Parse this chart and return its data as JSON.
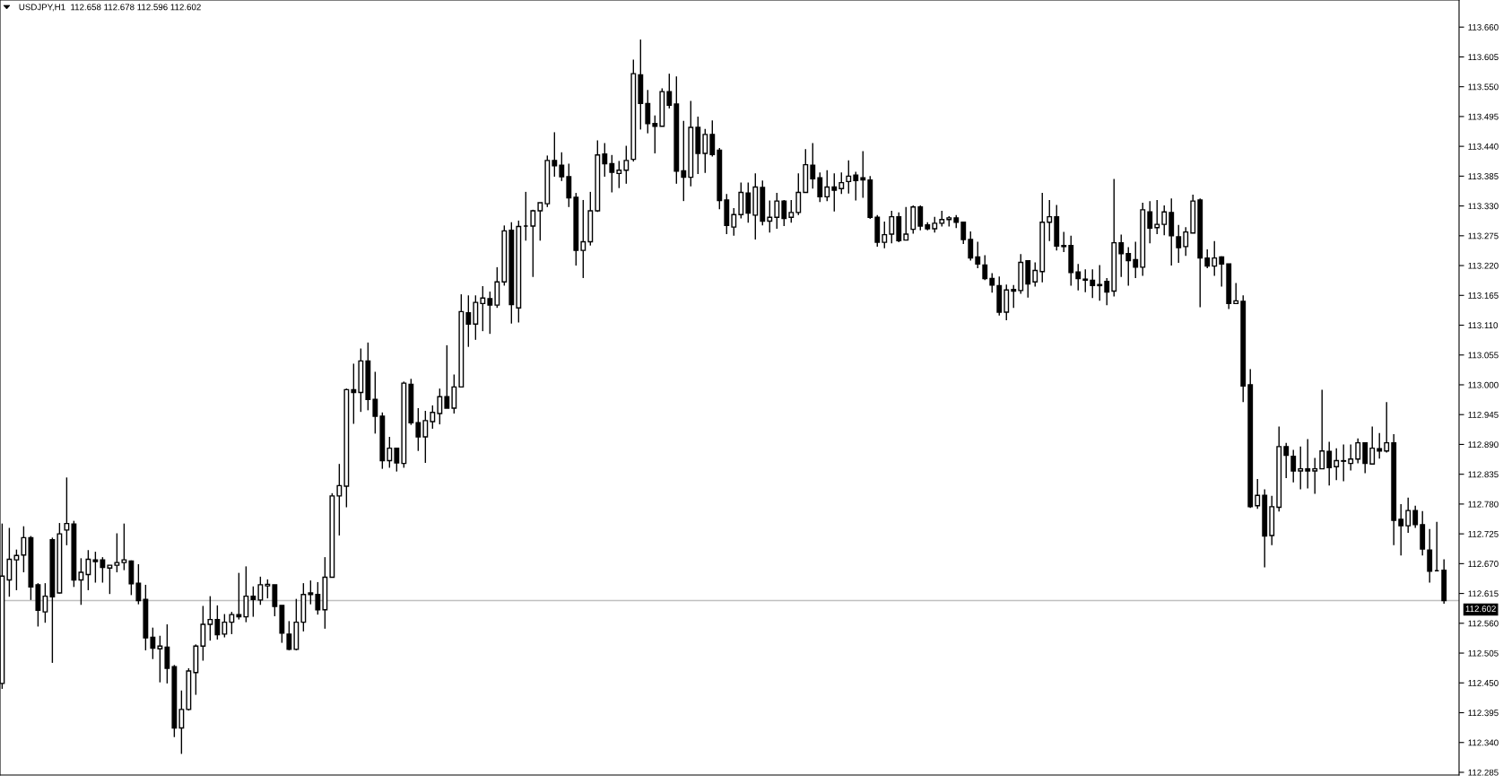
{
  "chart_data": {
    "type": "candlestick",
    "title": "USDJPY,H1  112.658 112.678 112.596 112.602",
    "categories": [
      null,
      null,
      null,
      null,
      null,
      null,
      null,
      null,
      null,
      null,
      null,
      null,
      null,
      null,
      null,
      null,
      null,
      null,
      null,
      null,
      null,
      null,
      null,
      null,
      null,
      null,
      null,
      null,
      null,
      null,
      null,
      null,
      null,
      null,
      null,
      null,
      null,
      null,
      null,
      null,
      null,
      null,
      null,
      null,
      null,
      null,
      null,
      null,
      null,
      null,
      null,
      null,
      null,
      null,
      null,
      null,
      null,
      null,
      null,
      null,
      null,
      null,
      null,
      null,
      null,
      null,
      null,
      null,
      null,
      null,
      null,
      null,
      null,
      null,
      null,
      null,
      null,
      null,
      null,
      null,
      null,
      null,
      null,
      null,
      null,
      null,
      null,
      null,
      null,
      null,
      null,
      null,
      null,
      null,
      null,
      null,
      null,
      null,
      null,
      null,
      null,
      null,
      null,
      null,
      null,
      null,
      null,
      null,
      null,
      null,
      null,
      null,
      null,
      null,
      null,
      null,
      null,
      null,
      null,
      null,
      null,
      null,
      null,
      null,
      null,
      null,
      null,
      null,
      null,
      null,
      null,
      null,
      null,
      null,
      null,
      null,
      null,
      null,
      null,
      null,
      null,
      null,
      null,
      null,
      null,
      null,
      null,
      null,
      null,
      null,
      null,
      null,
      null,
      null,
      null,
      null,
      null,
      null,
      null,
      null,
      null,
      null,
      null,
      null,
      null,
      null,
      null,
      null,
      null,
      null,
      null,
      null,
      null,
      null,
      null,
      null,
      null,
      null,
      null,
      null,
      null,
      null,
      null,
      null,
      null,
      null,
      null,
      null,
      null,
      null,
      null,
      null,
      null,
      null,
      null,
      null,
      null,
      null,
      null,
      null,
      null,
      null
    ],
    "ohlc": [
      [
        112.449,
        112.744,
        112.439,
        112.647
      ],
      [
        112.64,
        112.736,
        112.609,
        112.678
      ],
      [
        112.677,
        112.696,
        112.621,
        112.685
      ],
      [
        112.686,
        112.739,
        112.654,
        112.718
      ],
      [
        112.718,
        112.721,
        112.603,
        112.627
      ],
      [
        112.631,
        112.634,
        112.554,
        112.584
      ],
      [
        112.581,
        112.634,
        112.561,
        112.61
      ],
      [
        112.714,
        112.718,
        112.487,
        112.609
      ],
      [
        112.616,
        112.745,
        112.615,
        112.725
      ],
      [
        112.732,
        112.829,
        112.704,
        112.744
      ],
      [
        112.743,
        112.749,
        112.627,
        112.64
      ],
      [
        112.64,
        112.68,
        112.594,
        112.654
      ],
      [
        112.65,
        112.695,
        112.621,
        112.678
      ],
      [
        112.677,
        112.692,
        112.635,
        112.674
      ],
      [
        112.677,
        112.682,
        112.635,
        112.663
      ],
      [
        112.662,
        112.667,
        112.614,
        112.667
      ],
      [
        112.667,
        112.726,
        112.654,
        112.672
      ],
      [
        112.672,
        112.744,
        112.658,
        112.677
      ],
      [
        112.675,
        112.676,
        112.612,
        112.633
      ],
      [
        112.634,
        112.669,
        112.595,
        112.602
      ],
      [
        112.604,
        112.631,
        112.51,
        112.533
      ],
      [
        112.534,
        112.552,
        112.494,
        112.514
      ],
      [
        112.513,
        112.537,
        112.451,
        112.518
      ],
      [
        112.516,
        112.558,
        112.449,
        112.477
      ],
      [
        112.48,
        112.483,
        112.35,
        112.367
      ],
      [
        112.367,
        112.436,
        112.319,
        112.401
      ],
      [
        112.401,
        112.477,
        112.399,
        112.472
      ],
      [
        112.469,
        112.521,
        112.428,
        112.518
      ],
      [
        112.518,
        112.592,
        112.491,
        112.558
      ],
      [
        112.558,
        112.61,
        112.528,
        112.567
      ],
      [
        112.567,
        112.593,
        112.53,
        112.539
      ],
      [
        112.54,
        112.577,
        112.534,
        112.562
      ],
      [
        112.562,
        112.581,
        112.54,
        112.576
      ],
      [
        112.576,
        112.653,
        112.567,
        112.572
      ],
      [
        112.572,
        112.665,
        112.562,
        112.61
      ],
      [
        112.61,
        112.628,
        112.572,
        112.604
      ],
      [
        112.603,
        112.646,
        112.594,
        112.631
      ],
      [
        112.629,
        112.641,
        112.606,
        112.632
      ],
      [
        112.631,
        112.631,
        112.573,
        112.591
      ],
      [
        112.593,
        112.593,
        112.524,
        112.542
      ],
      [
        112.54,
        112.564,
        112.51,
        112.512
      ],
      [
        112.512,
        112.605,
        112.51,
        112.562
      ],
      [
        112.562,
        112.634,
        112.545,
        112.613
      ],
      [
        112.616,
        112.639,
        112.595,
        112.613
      ],
      [
        112.613,
        112.636,
        112.576,
        112.585
      ],
      [
        112.585,
        112.682,
        112.55,
        112.645
      ],
      [
        112.645,
        112.8,
        112.645,
        112.795
      ],
      [
        112.795,
        112.854,
        112.722,
        112.814
      ],
      [
        112.813,
        112.993,
        112.774,
        112.991
      ],
      [
        112.991,
        113.039,
        112.928,
        112.986
      ],
      [
        112.986,
        113.067,
        112.95,
        113.044
      ],
      [
        113.044,
        113.078,
        112.953,
        112.973
      ],
      [
        112.973,
        113.024,
        112.91,
        112.942
      ],
      [
        112.942,
        112.949,
        112.845,
        112.86
      ],
      [
        112.86,
        112.904,
        112.847,
        112.883
      ],
      [
        112.883,
        112.883,
        112.84,
        112.856
      ],
      [
        112.855,
        113.006,
        112.847,
        113.003
      ],
      [
        113.001,
        113.011,
        112.926,
        112.93
      ],
      [
        112.93,
        112.957,
        112.878,
        112.904
      ],
      [
        112.904,
        112.952,
        112.856,
        112.934
      ],
      [
        112.932,
        112.962,
        112.919,
        112.949
      ],
      [
        112.947,
        112.993,
        112.927,
        112.978
      ],
      [
        112.978,
        113.073,
        112.957,
        112.957
      ],
      [
        112.957,
        113.019,
        112.947,
        112.996
      ],
      [
        112.996,
        113.167,
        112.996,
        113.135
      ],
      [
        113.133,
        113.165,
        113.07,
        113.112
      ],
      [
        113.112,
        113.165,
        113.083,
        113.152
      ],
      [
        113.15,
        113.182,
        113.099,
        113.16
      ],
      [
        113.159,
        113.172,
        113.094,
        113.147
      ],
      [
        113.147,
        113.217,
        113.142,
        113.19
      ],
      [
        113.19,
        113.294,
        113.183,
        113.284
      ],
      [
        113.285,
        113.3,
        113.113,
        113.148
      ],
      [
        113.142,
        113.303,
        113.115,
        113.292
      ],
      [
        113.293,
        113.356,
        113.266,
        113.293
      ],
      [
        113.293,
        113.323,
        113.199,
        113.321
      ],
      [
        113.321,
        113.336,
        113.266,
        113.336
      ],
      [
        113.334,
        113.423,
        113.328,
        113.414
      ],
      [
        113.414,
        113.466,
        113.384,
        113.404
      ],
      [
        113.405,
        113.429,
        113.376,
        113.384
      ],
      [
        113.384,
        113.408,
        113.328,
        113.345
      ],
      [
        113.346,
        113.354,
        113.22,
        113.248
      ],
      [
        113.248,
        113.341,
        113.197,
        113.264
      ],
      [
        113.264,
        113.356,
        113.257,
        113.321
      ],
      [
        113.321,
        113.451,
        113.319,
        113.424
      ],
      [
        113.426,
        113.446,
        113.384,
        113.408
      ],
      [
        113.408,
        113.424,
        113.355,
        113.392
      ],
      [
        113.39,
        113.413,
        113.363,
        113.396
      ],
      [
        113.396,
        113.441,
        113.371,
        113.414
      ],
      [
        113.416,
        113.6,
        113.412,
        113.574
      ],
      [
        113.572,
        113.637,
        113.471,
        113.519
      ],
      [
        113.519,
        113.544,
        113.464,
        113.482
      ],
      [
        113.482,
        113.497,
        113.427,
        113.477
      ],
      [
        113.477,
        113.547,
        113.477,
        113.541
      ],
      [
        113.541,
        113.574,
        113.51,
        113.516
      ],
      [
        113.518,
        113.569,
        113.371,
        113.394
      ],
      [
        113.395,
        113.487,
        113.339,
        113.383
      ],
      [
        113.383,
        113.524,
        113.366,
        113.475
      ],
      [
        113.475,
        113.495,
        113.389,
        113.427
      ],
      [
        113.427,
        113.472,
        113.391,
        113.462
      ],
      [
        113.462,
        113.488,
        113.421,
        113.425
      ],
      [
        113.433,
        113.437,
        113.324,
        113.34
      ],
      [
        113.341,
        113.352,
        113.278,
        113.294
      ],
      [
        113.291,
        113.326,
        113.275,
        113.314
      ],
      [
        113.314,
        113.373,
        113.307,
        113.355
      ],
      [
        113.354,
        113.373,
        113.299,
        113.317
      ],
      [
        113.313,
        113.39,
        113.268,
        113.365
      ],
      [
        113.364,
        113.377,
        113.294,
        113.302
      ],
      [
        113.302,
        113.34,
        113.281,
        113.309
      ],
      [
        113.309,
        113.354,
        113.288,
        113.339
      ],
      [
        113.339,
        113.341,
        113.293,
        113.307
      ],
      [
        113.309,
        113.341,
        113.299,
        113.318
      ],
      [
        113.318,
        113.39,
        113.313,
        113.355
      ],
      [
        113.355,
        113.435,
        113.354,
        113.406
      ],
      [
        113.405,
        113.446,
        113.362,
        113.38
      ],
      [
        113.382,
        113.392,
        113.337,
        113.347
      ],
      [
        113.347,
        113.396,
        113.339,
        113.365
      ],
      [
        113.365,
        113.39,
        113.32,
        113.359
      ],
      [
        113.362,
        113.392,
        113.352,
        113.373
      ],
      [
        113.375,
        113.414,
        113.353,
        113.385
      ],
      [
        113.387,
        113.393,
        113.34,
        113.377
      ],
      [
        113.382,
        113.431,
        113.345,
        113.378
      ],
      [
        113.378,
        113.385,
        113.306,
        113.309
      ],
      [
        113.309,
        113.313,
        113.255,
        113.263
      ],
      [
        113.263,
        113.301,
        113.252,
        113.277
      ],
      [
        113.278,
        113.321,
        113.261,
        113.31
      ],
      [
        113.31,
        113.318,
        113.263,
        113.266
      ],
      [
        113.267,
        113.328,
        113.267,
        113.278
      ],
      [
        113.287,
        113.331,
        113.279,
        113.328
      ],
      [
        113.328,
        113.331,
        113.285,
        113.293
      ],
      [
        113.295,
        113.3,
        113.285,
        113.288
      ],
      [
        113.288,
        113.31,
        113.281,
        113.298
      ],
      [
        113.298,
        113.321,
        113.292,
        113.305
      ],
      [
        113.305,
        113.311,
        113.292,
        113.308
      ],
      [
        113.308,
        113.313,
        113.289,
        113.3
      ],
      [
        113.3,
        113.301,
        113.26,
        113.268
      ],
      [
        113.268,
        113.283,
        113.229,
        113.234
      ],
      [
        113.236,
        113.264,
        113.215,
        113.223
      ],
      [
        113.221,
        113.239,
        113.193,
        113.196
      ],
      [
        113.196,
        113.206,
        113.17,
        113.184
      ],
      [
        113.183,
        113.2,
        113.128,
        113.134
      ],
      [
        113.134,
        113.185,
        113.119,
        113.175
      ],
      [
        113.176,
        113.184,
        113.142,
        113.173
      ],
      [
        113.174,
        113.241,
        113.168,
        113.226
      ],
      [
        113.229,
        113.229,
        113.161,
        113.186
      ],
      [
        113.19,
        113.226,
        113.181,
        113.211
      ],
      [
        113.209,
        113.354,
        113.189,
        113.3
      ],
      [
        113.3,
        113.341,
        113.265,
        113.31
      ],
      [
        113.31,
        113.332,
        113.248,
        113.256
      ],
      [
        113.257,
        113.282,
        113.245,
        113.255
      ],
      [
        113.257,
        113.275,
        113.183,
        113.207
      ],
      [
        113.208,
        113.223,
        113.174,
        113.196
      ],
      [
        113.195,
        113.213,
        113.171,
        113.193
      ],
      [
        113.193,
        113.213,
        113.16,
        113.183
      ],
      [
        113.185,
        113.221,
        113.155,
        113.183
      ],
      [
        113.191,
        113.197,
        113.147,
        113.171
      ],
      [
        113.173,
        113.38,
        113.163,
        113.262
      ],
      [
        113.262,
        113.277,
        113.199,
        113.242
      ],
      [
        113.242,
        113.254,
        113.183,
        113.229
      ],
      [
        113.231,
        113.264,
        113.197,
        113.217
      ],
      [
        113.217,
        113.336,
        113.201,
        113.323
      ],
      [
        113.319,
        113.339,
        113.261,
        113.289
      ],
      [
        113.29,
        113.341,
        113.278,
        113.296
      ],
      [
        113.296,
        113.331,
        113.276,
        113.319
      ],
      [
        113.318,
        113.344,
        113.22,
        113.275
      ],
      [
        113.273,
        113.295,
        113.225,
        113.253
      ],
      [
        113.255,
        113.291,
        113.238,
        113.282
      ],
      [
        113.28,
        113.351,
        113.28,
        113.339
      ],
      [
        113.341,
        113.344,
        113.143,
        113.234
      ],
      [
        113.234,
        113.25,
        113.215,
        113.219
      ],
      [
        113.219,
        113.265,
        113.201,
        113.234
      ],
      [
        113.236,
        113.237,
        113.181,
        113.223
      ],
      [
        113.223,
        113.223,
        113.14,
        113.15
      ],
      [
        113.15,
        113.188,
        113.15,
        113.155
      ],
      [
        113.154,
        113.165,
        112.968,
        112.998
      ],
      [
        113.0,
        113.029,
        112.773,
        112.775
      ],
      [
        112.777,
        112.826,
        112.771,
        112.796
      ],
      [
        112.796,
        112.807,
        112.663,
        112.721
      ],
      [
        112.722,
        112.795,
        112.704,
        112.775
      ],
      [
        112.774,
        112.923,
        112.766,
        112.886
      ],
      [
        112.886,
        112.893,
        112.828,
        112.87
      ],
      [
        112.868,
        112.88,
        112.82,
        112.841
      ],
      [
        112.841,
        112.886,
        112.807,
        112.845
      ],
      [
        112.845,
        112.9,
        112.809,
        112.841
      ],
      [
        112.841,
        112.865,
        112.799,
        112.845
      ],
      [
        112.845,
        112.991,
        112.845,
        112.878
      ],
      [
        112.877,
        112.895,
        112.814,
        112.847
      ],
      [
        112.849,
        112.883,
        112.824,
        112.86
      ],
      [
        112.86,
        112.89,
        112.822,
        112.859
      ],
      [
        112.855,
        112.89,
        112.842,
        112.863
      ],
      [
        112.863,
        112.901,
        112.855,
        112.893
      ],
      [
        112.893,
        112.893,
        112.837,
        112.855
      ],
      [
        112.854,
        112.923,
        112.854,
        112.883
      ],
      [
        112.882,
        112.911,
        112.864,
        112.878
      ],
      [
        112.878,
        112.968,
        112.875,
        112.893
      ],
      [
        112.893,
        112.909,
        112.704,
        112.75
      ],
      [
        112.752,
        112.78,
        112.685,
        112.74
      ],
      [
        112.74,
        112.792,
        112.727,
        112.768
      ],
      [
        112.768,
        112.777,
        112.736,
        112.742
      ],
      [
        112.742,
        112.767,
        112.685,
        112.697
      ],
      [
        112.695,
        112.734,
        112.635,
        112.656
      ],
      [
        112.657,
        112.747,
        112.657,
        112.657
      ],
      [
        112.658,
        112.678,
        112.596,
        112.602
      ]
    ],
    "color": "#000000",
    "ylim": [
      112.28,
      113.71
    ],
    "yticks": [
      {
        "value": 113.66,
        "label": "113.660"
      },
      113.605,
      {
        "value": 113.55,
        "label": "113.550"
      },
      113.495,
      {
        "value": 113.44,
        "label": "113.440"
      },
      113.385,
      {
        "value": 113.33,
        "label": "113.330"
      },
      113.275,
      {
        "value": 113.22,
        "label": "113.220"
      },
      113.165,
      {
        "value": 113.11,
        "label": "113.110"
      },
      113.055,
      {
        "value": 113.0,
        "label": "113.000"
      },
      112.945,
      {
        "value": 112.89,
        "label": "112.890"
      },
      112.835,
      {
        "value": 112.78,
        "label": "112.780"
      },
      112.725,
      {
        "value": 112.67,
        "label": "112.670"
      },
      112.615,
      {
        "value": 112.56,
        "label": "112.560"
      },
      112.505,
      {
        "value": 112.45,
        "label": "112.450"
      },
      112.395,
      {
        "value": 112.34,
        "label": "112.340"
      },
      112.285
    ],
    "ref_lines": [
      {
        "axis": "y",
        "value": 112.602,
        "label": "112.602",
        "color": "#c0c0c0"
      }
    ],
    "tick_labels": "y"
  }
}
